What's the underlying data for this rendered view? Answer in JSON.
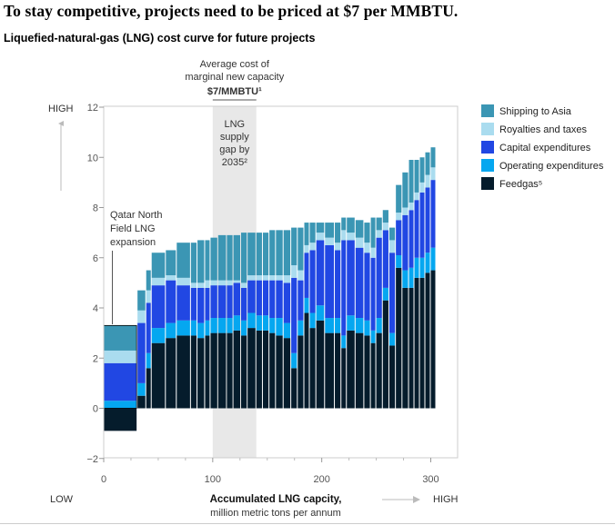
{
  "headline": "To stay competitive, projects need to be priced at $7 per MMBTU.",
  "chart_data": {
    "type": "bar",
    "title": "Liquefied-natural-gas (LNG) cost curve for future projects",
    "xlabel_line1": "Accumulated LNG capcity,",
    "xlabel_line2": "million metric tons per annum",
    "x_low_label": "LOW",
    "x_high_label": "HIGH",
    "y_high_label": "HIGH",
    "xlim": [
      0,
      310
    ],
    "ylim": [
      -2,
      12
    ],
    "x_ticks": [
      0,
      100,
      200,
      300
    ],
    "y_ticks": [
      -2,
      0,
      2,
      4,
      6,
      8,
      10,
      12
    ],
    "x_tick_labels": [
      "0",
      "100",
      "200",
      "300"
    ],
    "y_tick_labels": [
      "−2",
      "0",
      "2",
      "4",
      "6",
      "8",
      "10",
      "12"
    ],
    "grid": false,
    "legend_position": "top-right",
    "series": [
      {
        "name": "Shipping to Asia",
        "color": "#3b96b4"
      },
      {
        "name": "Royalties and taxes",
        "color": "#aadcef"
      },
      {
        "name": "Capital expenditures",
        "color": "#2147e3"
      },
      {
        "name": "Operating expenditures",
        "color": "#05a7f0"
      },
      {
        "name": "Feedgas⁵",
        "color": "#051c2c"
      }
    ],
    "shading": {
      "x_range": [
        100,
        140
      ],
      "label_lines": [
        "LNG",
        "supply",
        "gap by",
        "2035²"
      ]
    },
    "annotation_avg_cost": {
      "lines": [
        "Average cost of",
        "marginal new capacity"
      ],
      "value": "$7/MMBTU¹",
      "x_range": [
        100,
        140
      ]
    },
    "annotation_qatar": {
      "lines": [
        "Qatar North",
        "Field LNG",
        "expansion"
      ]
    },
    "projects": [
      {
        "x0": 0,
        "x1": 31,
        "feedgas": -0.9,
        "opex": 0.3,
        "capex": 1.5,
        "roy": 0.5,
        "ship": 1.0
      },
      {
        "x0": 31,
        "x1": 39,
        "feedgas": 0.5,
        "opex": 0.5,
        "capex": 2.4,
        "roy": 0.5,
        "ship": 0.8
      },
      {
        "x0": 39,
        "x1": 44,
        "feedgas": 1.6,
        "opex": 0.6,
        "capex": 2.0,
        "roy": 0.5,
        "ship": 0.8
      },
      {
        "x0": 44,
        "x1": 57,
        "feedgas": 2.6,
        "opex": 0.6,
        "capex": 1.7,
        "roy": 0.3,
        "ship": 1.0
      },
      {
        "x0": 57,
        "x1": 67,
        "feedgas": 2.8,
        "opex": 0.6,
        "capex": 1.7,
        "roy": 0.2,
        "ship": 1.0
      },
      {
        "x0": 67,
        "x1": 80,
        "feedgas": 2.9,
        "opex": 0.6,
        "capex": 1.4,
        "roy": 0.3,
        "ship": 1.4
      },
      {
        "x0": 80,
        "x1": 86,
        "feedgas": 2.9,
        "opex": 0.6,
        "capex": 1.3,
        "roy": 0.2,
        "ship": 1.6
      },
      {
        "x0": 86,
        "x1": 93,
        "feedgas": 2.8,
        "opex": 0.6,
        "capex": 1.4,
        "roy": 0.2,
        "ship": 1.7
      },
      {
        "x0": 93,
        "x1": 98,
        "feedgas": 2.9,
        "opex": 0.6,
        "capex": 1.3,
        "roy": 0.3,
        "ship": 1.6
      },
      {
        "x0": 98,
        "x1": 105,
        "feedgas": 3.0,
        "opex": 0.6,
        "capex": 1.3,
        "roy": 0.2,
        "ship": 1.7
      },
      {
        "x0": 105,
        "x1": 113,
        "feedgas": 3.0,
        "opex": 0.6,
        "capex": 1.3,
        "roy": 0.2,
        "ship": 1.8
      },
      {
        "x0": 113,
        "x1": 119,
        "feedgas": 3.0,
        "opex": 0.6,
        "capex": 1.3,
        "roy": 0.2,
        "ship": 1.8
      },
      {
        "x0": 119,
        "x1": 126,
        "feedgas": 3.1,
        "opex": 0.6,
        "capex": 1.3,
        "roy": 0.1,
        "ship": 1.8
      },
      {
        "x0": 126,
        "x1": 132,
        "feedgas": 2.9,
        "opex": 0.6,
        "capex": 1.3,
        "roy": 0.2,
        "ship": 2.0
      },
      {
        "x0": 132,
        "x1": 140,
        "feedgas": 3.2,
        "opex": 0.6,
        "capex": 1.3,
        "roy": 0.2,
        "ship": 1.7
      },
      {
        "x0": 140,
        "x1": 146,
        "feedgas": 3.1,
        "opex": 0.6,
        "capex": 1.4,
        "roy": 0.2,
        "ship": 1.7
      },
      {
        "x0": 146,
        "x1": 152,
        "feedgas": 3.1,
        "opex": 0.6,
        "capex": 1.4,
        "roy": 0.2,
        "ship": 1.7
      },
      {
        "x0": 152,
        "x1": 158,
        "feedgas": 3.0,
        "opex": 0.6,
        "capex": 1.5,
        "roy": 0.2,
        "ship": 1.8
      },
      {
        "x0": 158,
        "x1": 165,
        "feedgas": 2.9,
        "opex": 0.7,
        "capex": 1.5,
        "roy": 0.2,
        "ship": 1.8
      },
      {
        "x0": 165,
        "x1": 172,
        "feedgas": 2.8,
        "opex": 0.6,
        "capex": 1.6,
        "roy": 0.3,
        "ship": 1.8
      },
      {
        "x0": 172,
        "x1": 178,
        "feedgas": 1.6,
        "opex": 0.6,
        "capex": 3.0,
        "roy": 0.5,
        "ship": 1.5
      },
      {
        "x0": 178,
        "x1": 184,
        "feedgas": 2.9,
        "opex": 0.6,
        "capex": 1.6,
        "roy": 0.4,
        "ship": 1.7
      },
      {
        "x0": 184,
        "x1": 189,
        "feedgas": 3.8,
        "opex": 0.6,
        "capex": 1.8,
        "roy": 0.3,
        "ship": 0.9
      },
      {
        "x0": 189,
        "x1": 195,
        "feedgas": 3.2,
        "opex": 0.6,
        "capex": 2.5,
        "roy": 0.3,
        "ship": 0.8
      },
      {
        "x0": 195,
        "x1": 203,
        "feedgas": 3.5,
        "opex": 0.6,
        "capex": 2.6,
        "roy": 0.3,
        "ship": 0.4
      },
      {
        "x0": 203,
        "x1": 212,
        "feedgas": 3.0,
        "opex": 0.6,
        "capex": 2.9,
        "roy": 0.3,
        "ship": 0.6
      },
      {
        "x0": 212,
        "x1": 218,
        "feedgas": 3.0,
        "opex": 0.6,
        "capex": 2.7,
        "roy": 0.3,
        "ship": 0.8
      },
      {
        "x0": 218,
        "x1": 223,
        "feedgas": 2.4,
        "opex": 0.5,
        "capex": 3.8,
        "roy": 0.4,
        "ship": 0.5
      },
      {
        "x0": 223,
        "x1": 231,
        "feedgas": 3.1,
        "opex": 0.6,
        "capex": 3.0,
        "roy": 0.3,
        "ship": 0.6
      },
      {
        "x0": 231,
        "x1": 239,
        "feedgas": 3.0,
        "opex": 0.6,
        "capex": 2.8,
        "roy": 0.4,
        "ship": 0.7
      },
      {
        "x0": 239,
        "x1": 245,
        "feedgas": 2.9,
        "opex": 0.6,
        "capex": 2.7,
        "roy": 0.4,
        "ship": 0.8
      },
      {
        "x0": 245,
        "x1": 250,
        "feedgas": 2.6,
        "opex": 0.5,
        "capex": 2.9,
        "roy": 0.4,
        "ship": 1.2
      },
      {
        "x0": 250,
        "x1": 256,
        "feedgas": 3.0,
        "opex": 0.6,
        "capex": 3.2,
        "roy": 0.3,
        "ship": 0.5
      },
      {
        "x0": 256,
        "x1": 262,
        "feedgas": 4.3,
        "opex": 0.5,
        "capex": 2.3,
        "roy": 0.3,
        "ship": 0.5
      },
      {
        "x0": 262,
        "x1": 268,
        "feedgas": 2.5,
        "opex": 0.5,
        "capex": 3.2,
        "roy": 0.5,
        "ship": 0.5
      },
      {
        "x0": 268,
        "x1": 274,
        "feedgas": 5.6,
        "opex": 0.5,
        "capex": 1.4,
        "roy": 0.3,
        "ship": 1.1
      },
      {
        "x0": 274,
        "x1": 280,
        "feedgas": 4.8,
        "opex": 0.7,
        "capex": 2.2,
        "roy": 0.3,
        "ship": 1.4
      },
      {
        "x0": 280,
        "x1": 285,
        "feedgas": 4.8,
        "opex": 0.8,
        "capex": 2.3,
        "roy": 0.3,
        "ship": 1.7
      },
      {
        "x0": 285,
        "x1": 290,
        "feedgas": 5.2,
        "opex": 0.8,
        "capex": 2.3,
        "roy": 0.3,
        "ship": 1.3
      },
      {
        "x0": 290,
        "x1": 295,
        "feedgas": 5.2,
        "opex": 0.8,
        "capex": 2.6,
        "roy": 0.4,
        "ship": 1.0
      },
      {
        "x0": 295,
        "x1": 300,
        "feedgas": 5.4,
        "opex": 0.8,
        "capex": 2.6,
        "roy": 0.5,
        "ship": 0.9
      },
      {
        "x0": 300,
        "x1": 305,
        "feedgas": 5.5,
        "opex": 0.9,
        "capex": 2.7,
        "roy": 0.5,
        "ship": 0.8
      }
    ]
  }
}
